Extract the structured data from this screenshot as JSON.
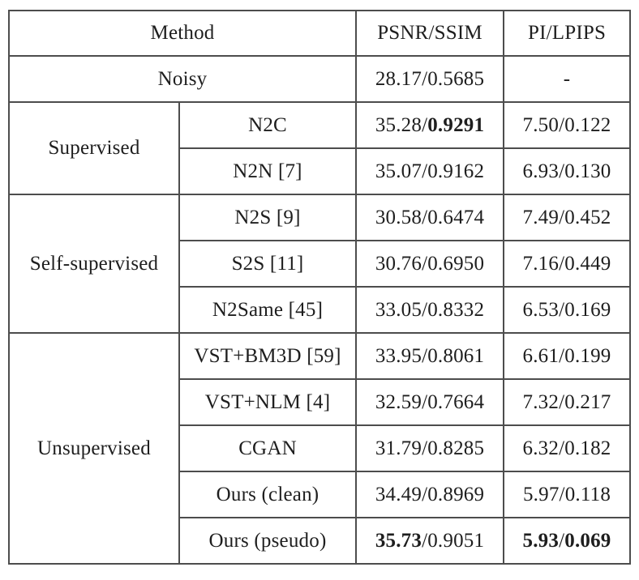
{
  "separator": "/",
  "table": {
    "header": {
      "method": "Method",
      "psnr_ssim": "PSNR/SSIM",
      "pi_lpips": "PI/LPIPS"
    },
    "noisy": {
      "label": "Noisy",
      "psnr": "28.17",
      "ssim": "0.5685",
      "pi_lpips": "-"
    },
    "groups": [
      {
        "category": "Supervised",
        "rows": [
          {
            "method": "N2C",
            "psnr": "35.28",
            "ssim": "0.9291",
            "pi": "7.50",
            "lpips": "0.122"
          },
          {
            "method": "N2N [7]",
            "psnr": "35.07",
            "ssim": "0.9162",
            "pi": "6.93",
            "lpips": "0.130"
          }
        ]
      },
      {
        "category": "Self-supervised",
        "rows": [
          {
            "method": "N2S [9]",
            "psnr": "30.58",
            "ssim": "0.6474",
            "pi": "7.49",
            "lpips": "0.452"
          },
          {
            "method": "S2S [11]",
            "psnr": "30.76",
            "ssim": "0.6950",
            "pi": "7.16",
            "lpips": "0.449"
          },
          {
            "method": "N2Same [45]",
            "psnr": "33.05",
            "ssim": "0.8332",
            "pi": "6.53",
            "lpips": "0.169"
          }
        ]
      },
      {
        "category": "Unsupervised",
        "rows": [
          {
            "method": "VST+BM3D [59]",
            "psnr": "33.95",
            "ssim": "0.8061",
            "pi": "6.61",
            "lpips": "0.199"
          },
          {
            "method": "VST+NLM [4]",
            "psnr": "32.59",
            "ssim": "0.7664",
            "pi": "7.32",
            "lpips": "0.217"
          },
          {
            "method": "CGAN",
            "psnr": "31.79",
            "ssim": "0.8285",
            "pi": "6.32",
            "lpips": "0.182"
          },
          {
            "method": "Ours (clean)",
            "psnr": "34.49",
            "ssim": "0.8969",
            "pi": "5.97",
            "lpips": "0.118"
          },
          {
            "method": "Ours (pseudo)",
            "psnr": "35.73",
            "ssim": "0.9051",
            "pi": "5.93",
            "lpips": "0.069"
          }
        ]
      }
    ]
  }
}
